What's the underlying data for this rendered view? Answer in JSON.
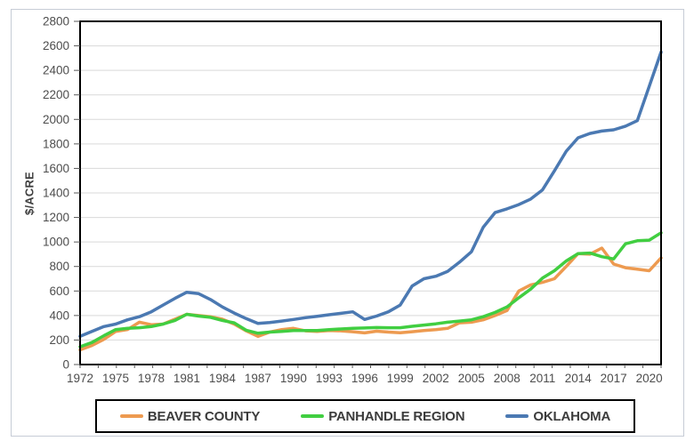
{
  "figure": {
    "y_axis_title": "$/ACRE"
  },
  "chart_data": {
    "type": "line",
    "title": "",
    "xlabel": "",
    "ylabel": "$/ACRE",
    "ylim": [
      0,
      2800
    ],
    "y_tick_step": 200,
    "grid": true,
    "legend_position": "bottom",
    "x": [
      1972,
      1973,
      1974,
      1975,
      1976,
      1977,
      1978,
      1979,
      1980,
      1981,
      1982,
      1983,
      1984,
      1985,
      1986,
      1987,
      1988,
      1989,
      1990,
      1991,
      1992,
      1993,
      1994,
      1995,
      1996,
      1997,
      1998,
      1999,
      2000,
      2001,
      2002,
      2003,
      2004,
      2005,
      2006,
      2007,
      2008,
      2009,
      2010,
      2011,
      2012,
      2013,
      2014,
      2015,
      2016,
      2017,
      2018,
      2019,
      2020,
      2021
    ],
    "x_tick_labels": [
      "1972",
      "1975",
      "1978",
      "1981",
      "1984",
      "1987",
      "1990",
      "1993",
      "1996",
      "1999",
      "2002",
      "2005",
      "2008",
      "2011",
      "2014",
      "2017",
      "2020"
    ],
    "colors": {
      "grid": "#d9d9d9",
      "plot_border": "#000000",
      "tick": "#595959",
      "axis_text": "#4d4d4d"
    },
    "series": [
      {
        "name": "BEAVER COUNTY",
        "color": "#ED9A50",
        "values": [
          120,
          155,
          205,
          270,
          285,
          345,
          325,
          330,
          370,
          410,
          400,
          390,
          370,
          330,
          275,
          230,
          265,
          285,
          295,
          275,
          270,
          278,
          275,
          268,
          258,
          272,
          265,
          260,
          268,
          278,
          285,
          295,
          340,
          345,
          365,
          400,
          440,
          600,
          650,
          670,
          700,
          800,
          905,
          900,
          950,
          820,
          790,
          778,
          765,
          870
        ]
      },
      {
        "name": "PANHANDLE REGION",
        "color": "#41CE41",
        "values": [
          145,
          180,
          235,
          285,
          295,
          300,
          310,
          330,
          360,
          410,
          395,
          385,
          360,
          340,
          280,
          255,
          265,
          270,
          278,
          278,
          278,
          285,
          290,
          295,
          298,
          302,
          300,
          300,
          312,
          322,
          332,
          345,
          355,
          365,
          390,
          425,
          470,
          545,
          615,
          705,
          765,
          845,
          905,
          910,
          880,
          862,
          985,
          1010,
          1015,
          1075
        ]
      },
      {
        "name": "OKLAHOMA",
        "color": "#4B79B2",
        "values": [
          230,
          270,
          310,
          330,
          365,
          390,
          430,
          485,
          540,
          590,
          578,
          530,
          470,
          420,
          375,
          335,
          343,
          355,
          368,
          382,
          394,
          406,
          418,
          430,
          368,
          395,
          430,
          485,
          640,
          700,
          720,
          760,
          835,
          920,
          1120,
          1240,
          1270,
          1305,
          1350,
          1425,
          1580,
          1740,
          1850,
          1885,
          1905,
          1915,
          1945,
          1990,
          2270,
          2550
        ]
      }
    ]
  }
}
